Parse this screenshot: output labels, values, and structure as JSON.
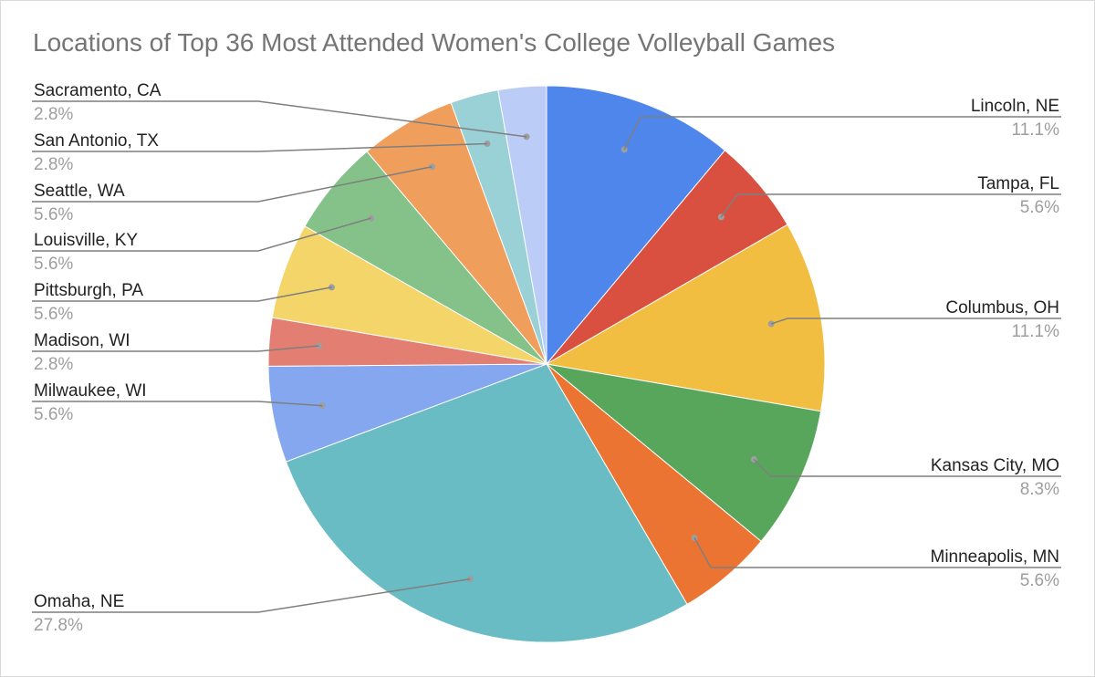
{
  "chart_data": {
    "type": "pie",
    "title": "Locations of Top 36 Most Attended Women's College Volleyball Games",
    "start_angle_deg": 0,
    "direction": "clockwise",
    "slices": [
      {
        "label": "Lincoln, NE",
        "pct_label": "11.1%",
        "value": 11.1,
        "color": "#4f86ec",
        "side": "right"
      },
      {
        "label": "Tampa, FL",
        "pct_label": "5.6%",
        "value": 5.6,
        "color": "#d95040",
        "side": "right"
      },
      {
        "label": "Columbus, OH",
        "pct_label": "11.1%",
        "value": 11.1,
        "color": "#f2be42",
        "side": "right"
      },
      {
        "label": "Kansas City, MO",
        "pct_label": "8.3%",
        "value": 8.3,
        "color": "#58a65c",
        "side": "right"
      },
      {
        "label": "Minneapolis, MN",
        "pct_label": "5.6%",
        "value": 5.6,
        "color": "#ec7432",
        "side": "right"
      },
      {
        "label": "Omaha, NE",
        "pct_label": "27.8%",
        "value": 27.8,
        "color": "#69bcc4",
        "side": "left"
      },
      {
        "label": "Milwaukee, WI",
        "pct_label": "5.6%",
        "value": 5.6,
        "color": "#84a7ef",
        "side": "left"
      },
      {
        "label": "Madison, WI",
        "pct_label": "2.8%",
        "value": 2.8,
        "color": "#e37e72",
        "side": "left"
      },
      {
        "label": "Pittsburgh, PA",
        "pct_label": "5.6%",
        "value": 5.6,
        "color": "#f4d56a",
        "side": "left"
      },
      {
        "label": "Louisville, KY",
        "pct_label": "5.6%",
        "value": 5.6,
        "color": "#84c28a",
        "side": "left"
      },
      {
        "label": "Seattle, WA",
        "pct_label": "5.6%",
        "value": 5.6,
        "color": "#f09e5c",
        "side": "left"
      },
      {
        "label": "San Antonio, TX",
        "pct_label": "2.8%",
        "value": 2.8,
        "color": "#99d1d7",
        "side": "left"
      },
      {
        "label": "Sacramento, CA",
        "pct_label": "2.8%",
        "value": 2.8,
        "color": "#bbcdf7",
        "side": "left"
      }
    ],
    "legend": "none (leader-line labels)"
  }
}
